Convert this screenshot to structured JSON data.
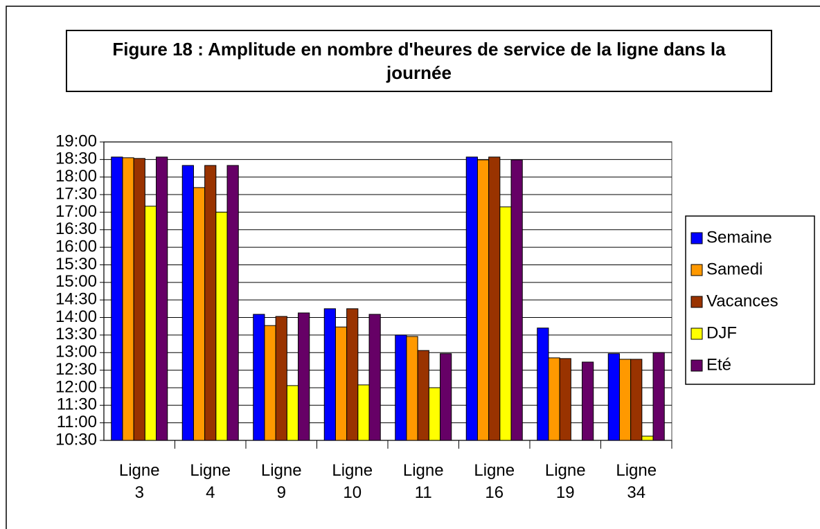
{
  "chart_data": {
    "type": "bar",
    "title": "Figure 18 : Amplitude en nombre d'heures de service de la ligne dans la journée",
    "categories": [
      "Ligne 3",
      "Ligne 4",
      "Ligne 9",
      "Ligne 10",
      "Ligne 11",
      "Ligne 16",
      "Ligne 19",
      "Ligne 34"
    ],
    "series": [
      {
        "name": "Semaine",
        "color": "#0000ff",
        "values": [
          18.57,
          18.33,
          14.09,
          14.25,
          13.5,
          18.57,
          13.7,
          12.97
        ]
      },
      {
        "name": "Samedi",
        "color": "#ff9900",
        "values": [
          18.55,
          17.7,
          13.77,
          13.73,
          13.46,
          18.49,
          12.85,
          12.81
        ]
      },
      {
        "name": "Vacances",
        "color": "#993300",
        "values": [
          18.53,
          18.33,
          14.03,
          14.25,
          13.06,
          18.57,
          12.83,
          12.81
        ]
      },
      {
        "name": "DJF",
        "color": "#ffff00",
        "values": [
          17.17,
          17.0,
          12.06,
          12.08,
          12.0,
          17.15,
          null,
          10.62
        ]
      },
      {
        "name": "Eté",
        "color": "#660066",
        "values": [
          18.57,
          18.33,
          14.13,
          14.09,
          12.97,
          18.49,
          12.73,
          13.0
        ]
      }
    ],
    "ylim": [
      10.5,
      19
    ],
    "yticks": [
      {
        "value": 10.5,
        "label": "10:30"
      },
      {
        "value": 11,
        "label": "11:00"
      },
      {
        "value": 11.5,
        "label": "11:30"
      },
      {
        "value": 12,
        "label": "12:00"
      },
      {
        "value": 12.5,
        "label": "12:30"
      },
      {
        "value": 13,
        "label": "13:00"
      },
      {
        "value": 13.5,
        "label": "13:30"
      },
      {
        "value": 14,
        "label": "14:00"
      },
      {
        "value": 14.5,
        "label": "14:30"
      },
      {
        "value": 15,
        "label": "15:00"
      },
      {
        "value": 15.5,
        "label": "15:30"
      },
      {
        "value": 16,
        "label": "16:00"
      },
      {
        "value": 16.5,
        "label": "16:30"
      },
      {
        "value": 17,
        "label": "17:00"
      },
      {
        "value": 17.5,
        "label": "17:30"
      },
      {
        "value": 18,
        "label": "18:00"
      },
      {
        "value": 18.5,
        "label": "18:30"
      },
      {
        "value": 19,
        "label": "19:00"
      }
    ],
    "grid": true,
    "legend": "right"
  }
}
